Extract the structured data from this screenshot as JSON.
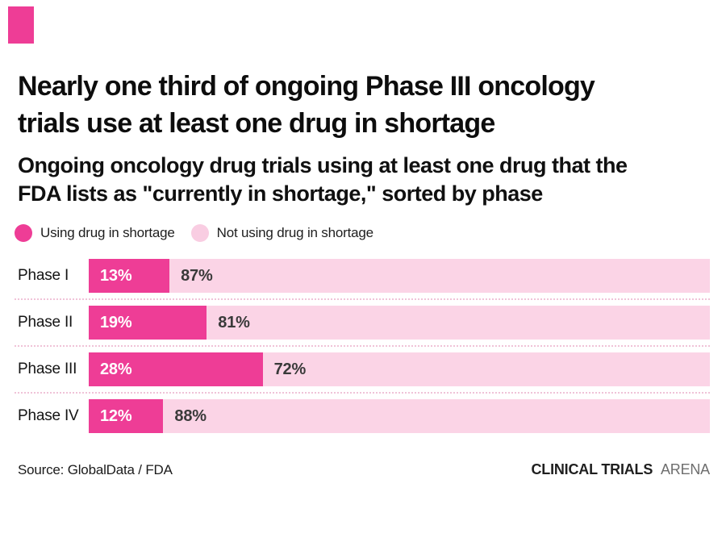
{
  "brand": {
    "accent_color": "#ee3d96"
  },
  "title": {
    "full": "Nearly one third of ongoing Phase III oncology trials use at least one drug in shortage",
    "line1": "Nearly one third of ongoing Phase III oncology",
    "line2": "trials use at least one drug in shortage"
  },
  "subtitle": {
    "full": "Ongoing oncology drug trials using at least one drug that the FDA lists as \"currently in shortage,\" sorted by phase",
    "line1": "Ongoing oncology drug trials using at least one drug that the",
    "line2": "FDA lists as \"currently in shortage,\" sorted by phase"
  },
  "legend": {
    "items": [
      {
        "label": "Using drug in shortage",
        "color": "#ee3d96"
      },
      {
        "label": "Not using drug in shortage",
        "color": "#f9cde2"
      }
    ]
  },
  "chart_data": {
    "type": "bar",
    "orientation": "horizontal",
    "stacked": true,
    "categories": [
      "Phase I",
      "Phase II",
      "Phase III",
      "Phase IV"
    ],
    "series": [
      {
        "name": "Using drug in shortage",
        "color": "#ee3d96",
        "values": [
          13,
          19,
          28,
          12
        ]
      },
      {
        "name": "Not using drug in shortage",
        "color": "#fbd4e6",
        "values": [
          87,
          81,
          72,
          88
        ]
      }
    ],
    "value_suffix": "%",
    "xlim": [
      0,
      100
    ],
    "grid": false,
    "legend_position": "top-left",
    "separator_style": "dotted"
  },
  "footer": {
    "source": "Source: GlobalData / FDA",
    "logo_strong": "CLINICAL TRIALS",
    "logo_light": "ARENA"
  }
}
